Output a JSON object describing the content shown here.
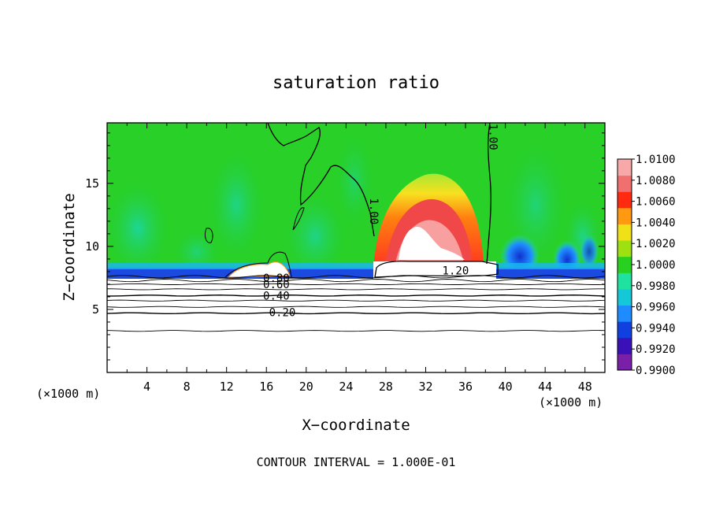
{
  "chart_data": {
    "type": "heatmap",
    "title": "saturation ratio",
    "xlabel": "X−coordinate",
    "ylabel": "Z−coordinate",
    "x_unit_left": "(×1000 m)",
    "x_unit_right": "(×1000 m)",
    "xlim": [
      0,
      50
    ],
    "ylim": [
      0,
      19.8
    ],
    "x_ticks": [
      4,
      8,
      12,
      16,
      20,
      24,
      28,
      32,
      36,
      40,
      44,
      48
    ],
    "y_ticks": [
      5,
      10,
      15
    ],
    "colorbar": {
      "min": 0.99,
      "max": 1.01,
      "labels": [
        "1.0100",
        "1.0080",
        "1.0060",
        "1.0040",
        "1.0020",
        "1.0000",
        "0.9980",
        "0.9960",
        "0.9940",
        "0.9920",
        "0.9900"
      ],
      "colors": [
        "#7a1fa8",
        "#3a10b8",
        "#1040e0",
        "#1e8cff",
        "#14c8d8",
        "#20e2a0",
        "#28d020",
        "#9ee010",
        "#f0e018",
        "#ff9a10",
        "#ff2a10",
        "#f07070",
        "#f8a8a8"
      ]
    },
    "contour_labels": [
      {
        "text": "1.00",
        "x": 38.8,
        "y": 18.5,
        "angle": 90
      },
      {
        "text": "1.00",
        "x": 26.8,
        "y": 12.6,
        "angle": 90
      },
      {
        "text": "1.20",
        "x": 35.0,
        "y": 7.9,
        "angle": 0
      },
      {
        "text": "0.80",
        "x": 17.0,
        "y": 7.3,
        "angle": 0
      },
      {
        "text": "0.60",
        "x": 17.0,
        "y": 6.8,
        "angle": 0
      },
      {
        "text": "0.40",
        "x": 17.0,
        "y": 5.9,
        "angle": 0
      },
      {
        "text": "0.20",
        "x": 17.6,
        "y": 4.6,
        "angle": 0
      }
    ],
    "contour_levels_below": [
      7.6,
      7.3,
      7.0,
      6.6,
      6.1,
      5.7,
      5.2,
      4.7,
      3.3
    ],
    "plume": {
      "center_x": 32,
      "top_z": 15.8,
      "half_width": 6
    },
    "footer": "CONTOUR INTERVAL = 1.000E−01"
  },
  "footer_text": "CONTOUR INTERVAL = 1.000E-01"
}
